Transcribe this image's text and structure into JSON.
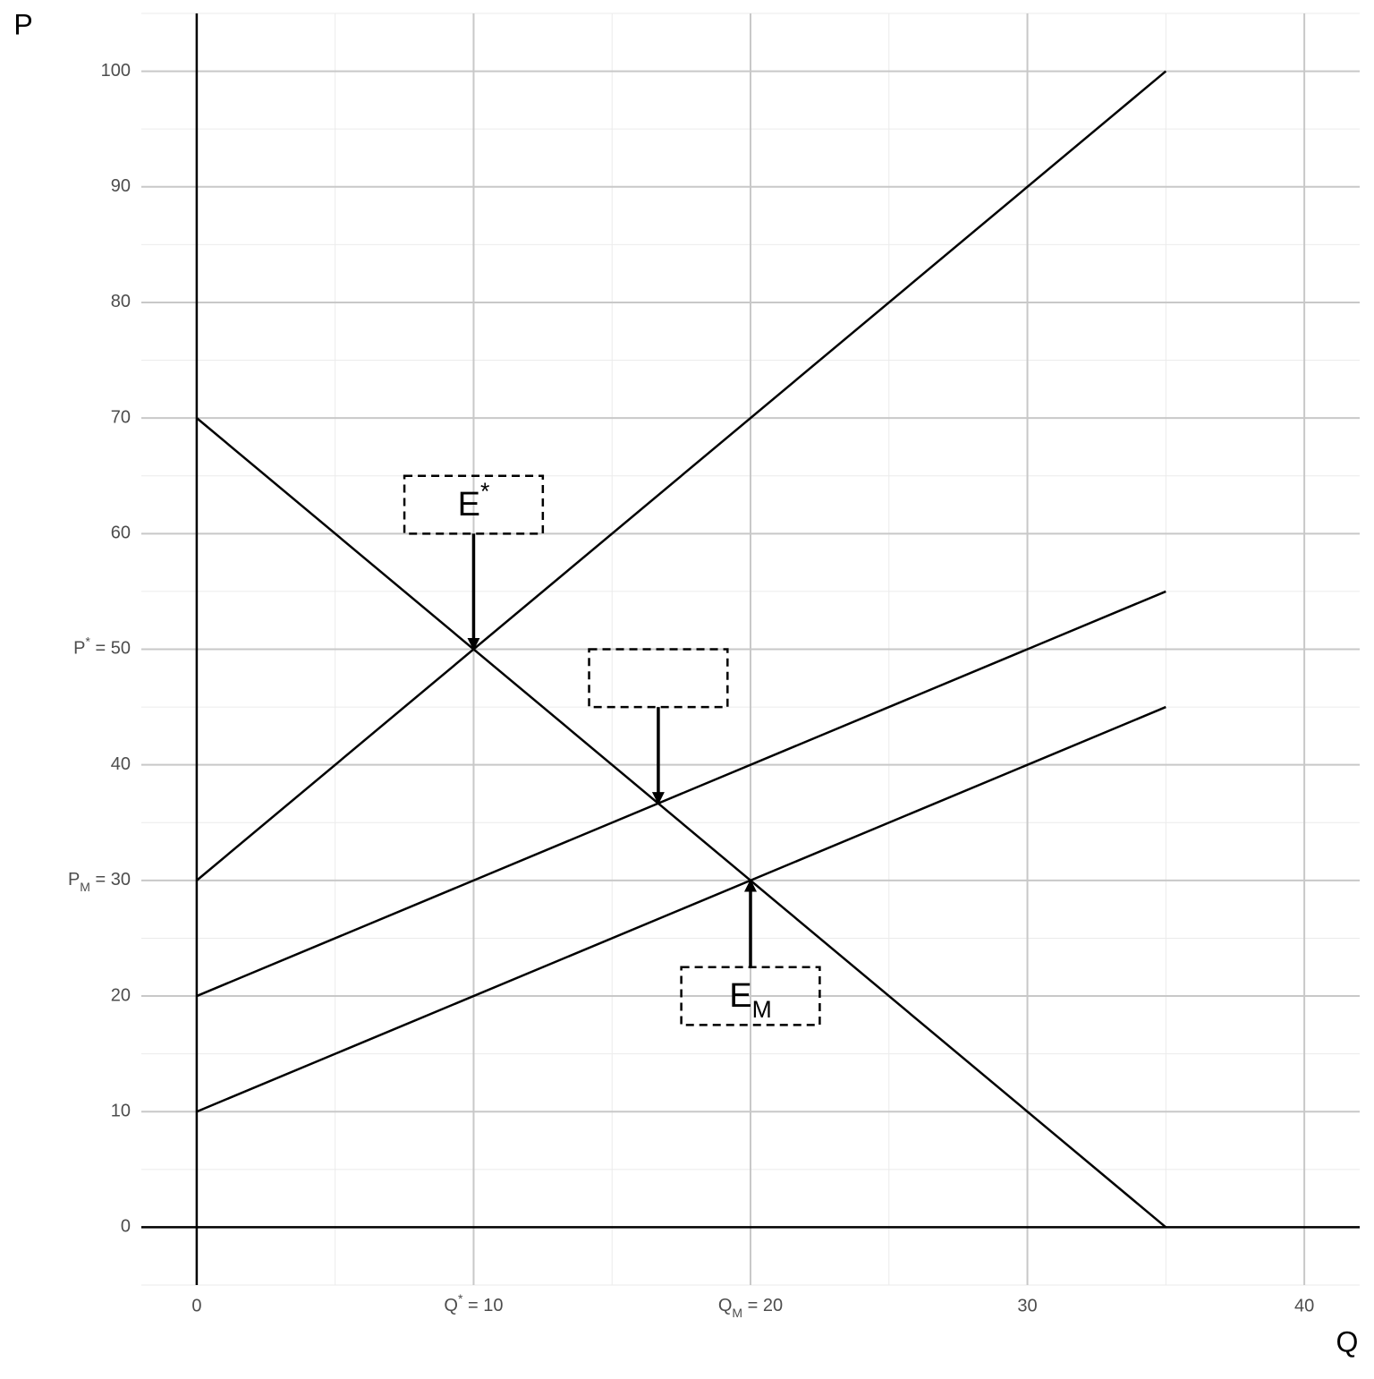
{
  "chart_data": {
    "type": "line",
    "x_label": "Q",
    "y_label": "P",
    "xlim": [
      -2,
      42
    ],
    "ylim": [
      -5,
      105
    ],
    "xticks": [
      0,
      {
        "value": 10,
        "label": [
          "Q",
          "*",
          " = 10"
        ]
      },
      {
        "value": 20,
        "label": [
          "Q",
          "M",
          " = 20"
        ]
      },
      30,
      40
    ],
    "yticks": [
      0,
      10,
      20,
      {
        "value": 30,
        "label": [
          "P",
          "M",
          " = 30"
        ]
      },
      40,
      {
        "value": 50,
        "label": [
          "P",
          "*",
          " = 50"
        ]
      },
      60,
      70,
      80,
      90,
      100
    ],
    "grid": true,
    "minor_grid": true,
    "series": [
      {
        "color": "#000000",
        "x": [
          0,
          35
        ],
        "values": [
          70,
          0
        ]
      },
      {
        "color": "#000000",
        "x": [
          0,
          35
        ],
        "values": [
          30,
          100
        ]
      },
      {
        "color": "#000000",
        "x": [
          0,
          35
        ],
        "values": [
          20,
          55
        ]
      },
      {
        "color": "#000000",
        "x": [
          0,
          35
        ],
        "values": [
          10,
          45
        ]
      }
    ],
    "annotations": [
      {
        "text": [
          "E",
          "*"
        ],
        "box": [
          10,
          62.5
        ],
        "arrow_to": [
          10,
          50
        ]
      },
      {
        "box": [
          16.67,
          47.5
        ],
        "arrow_to": [
          16.67,
          36.67
        ]
      },
      {
        "text": [
          "E",
          "M"
        ],
        "box": [
          20,
          20
        ],
        "arrow_to": [
          20,
          30
        ]
      }
    ]
  }
}
